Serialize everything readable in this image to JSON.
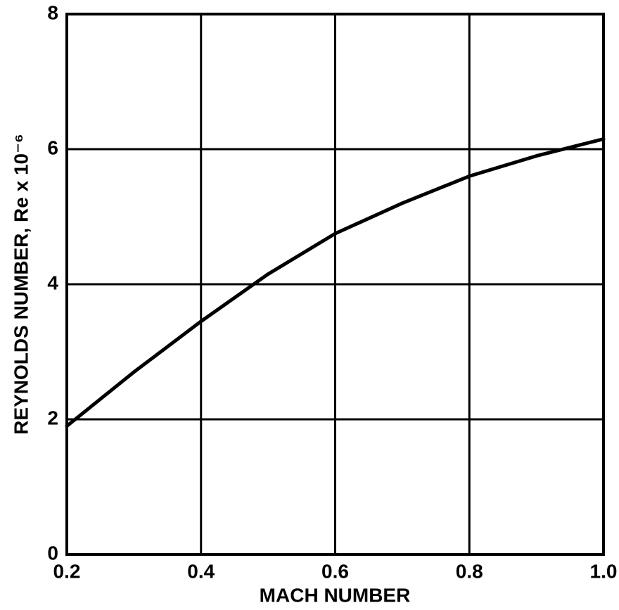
{
  "chart_data": {
    "type": "line",
    "xlabel": "MACH NUMBER",
    "ylabel": "REYNOLDS NUMBER, Re x 10⁻⁶",
    "x": [
      0.2,
      0.3,
      0.4,
      0.5,
      0.6,
      0.7,
      0.8,
      0.9,
      1.0
    ],
    "series": [
      {
        "color": "#000000",
        "values": [
          1.9,
          2.7,
          3.45,
          4.15,
          4.75,
          5.2,
          5.6,
          5.9,
          6.15
        ]
      }
    ],
    "xlim": [
      0.2,
      1.0
    ],
    "xticks": [
      0.2,
      0.4,
      0.6,
      0.8,
      {
        "value": 1,
        "label": "1.0"
      }
    ],
    "ylim": [
      0,
      8
    ],
    "yticks": [
      0,
      2,
      4,
      6,
      8
    ],
    "grid": true
  }
}
